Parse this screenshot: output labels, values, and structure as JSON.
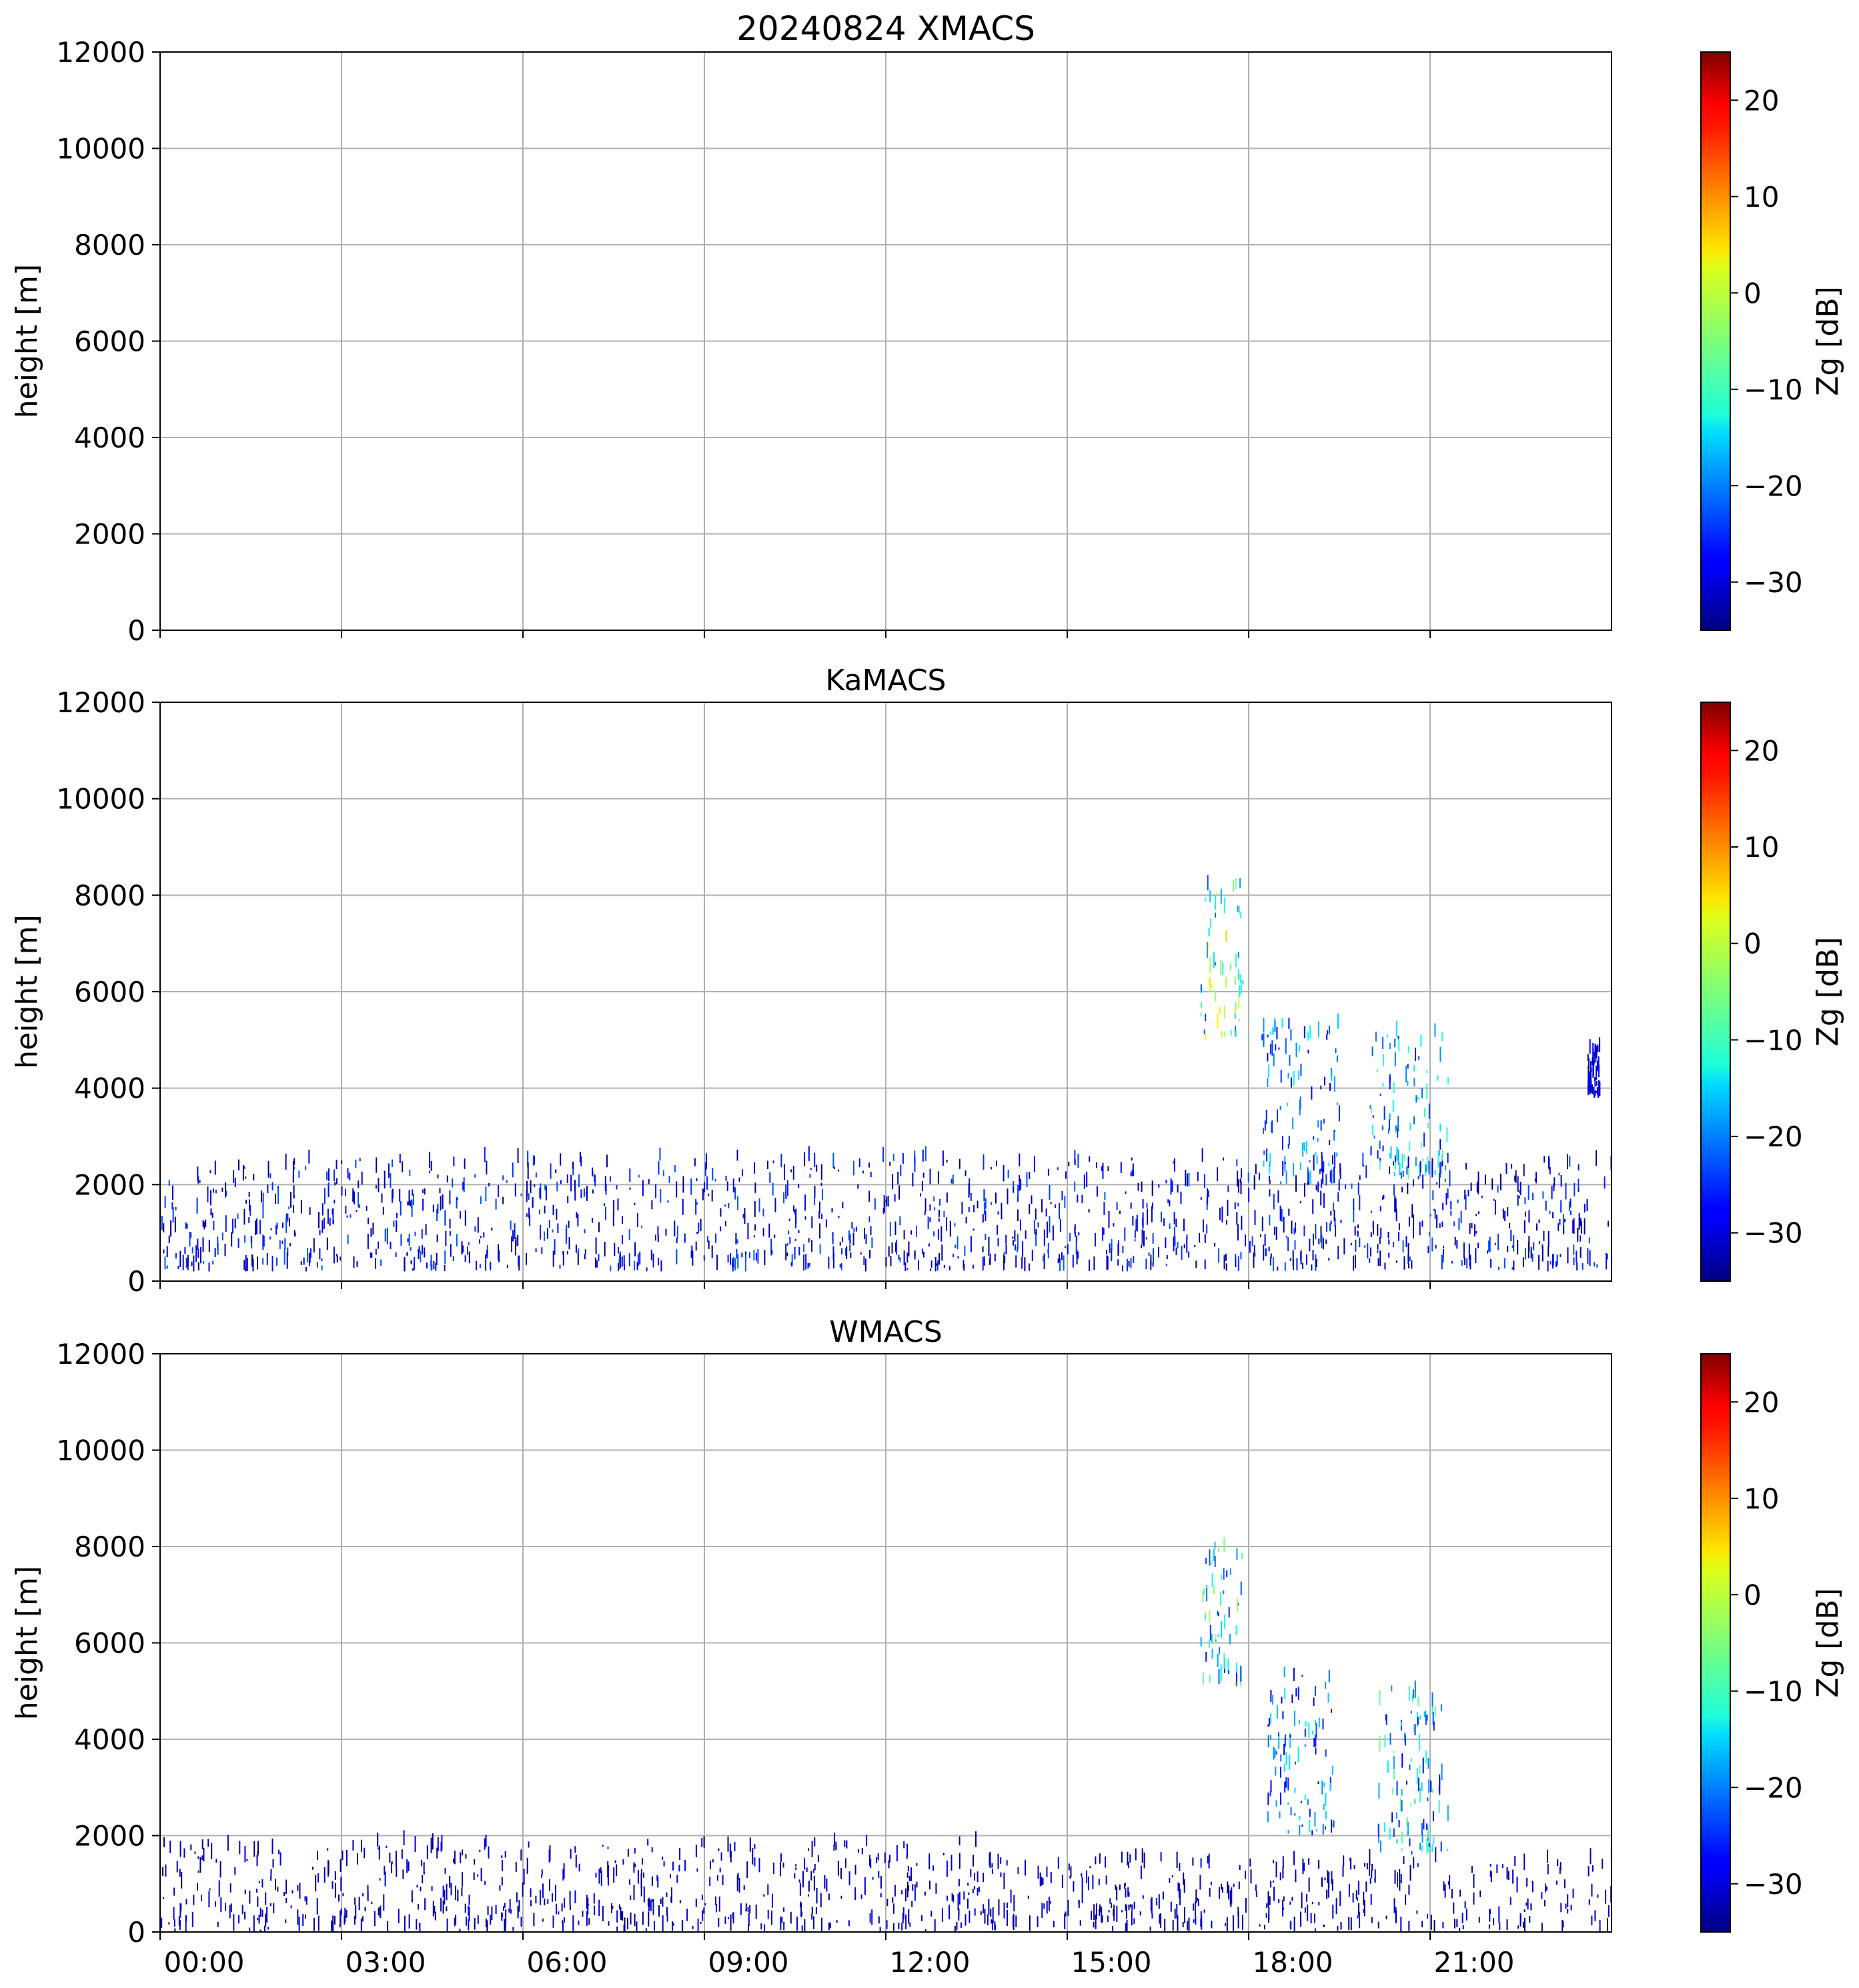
{
  "figure": {
    "title": "20240824 XMACS"
  },
  "chart_data": [
    {
      "type": "heatmap",
      "title": "20240824 XMACS",
      "xlabel": "",
      "ylabel": "height [m]",
      "xlim": [
        "00:00",
        "24:00"
      ],
      "ylim": [
        0,
        12000
      ],
      "x_ticks": [
        "00:00",
        "03:00",
        "06:00",
        "09:00",
        "12:00",
        "15:00",
        "18:00",
        "21:00"
      ],
      "x_ticklabels_shown": false,
      "y_ticks": [
        0,
        2000,
        4000,
        6000,
        8000,
        10000,
        12000
      ],
      "grid": true,
      "colorbar": {
        "label": "Zg [dB]",
        "range": [
          -35,
          25
        ],
        "ticks": [
          -30,
          -20,
          -10,
          0,
          10,
          20
        ],
        "colormap": "jet"
      },
      "echoes": []
    },
    {
      "type": "heatmap",
      "title": "KaMACS",
      "xlabel": "",
      "ylabel": "height [m]",
      "xlim": [
        "00:00",
        "24:00"
      ],
      "ylim": [
        0,
        12000
      ],
      "x_ticks": [
        "00:00",
        "03:00",
        "06:00",
        "09:00",
        "12:00",
        "15:00",
        "18:00",
        "21:00"
      ],
      "x_ticklabels_shown": false,
      "y_ticks": [
        0,
        2000,
        4000,
        6000,
        8000,
        10000,
        12000
      ],
      "grid": true,
      "colorbar": {
        "label": "Zg [dB]",
        "range": [
          -35,
          25
        ],
        "ticks": [
          -30,
          -20,
          -10,
          0,
          10,
          20
        ],
        "colormap": "jet"
      },
      "echoes": [
        {
          "time_start_h": 0.0,
          "time_end_h": 24.0,
          "height_bottom_m": 200,
          "height_top_m": 2500,
          "zg_min_db": -35,
          "zg_max_db": -22
        },
        {
          "time_start_h": 17.2,
          "time_end_h": 17.9,
          "height_bottom_m": 5000,
          "height_top_m": 8200,
          "zg_min_db": -25,
          "zg_max_db": 5
        },
        {
          "time_start_h": 18.2,
          "time_end_h": 19.5,
          "height_bottom_m": 2000,
          "height_top_m": 5300,
          "zg_min_db": -30,
          "zg_max_db": -12
        },
        {
          "time_start_h": 20.0,
          "time_end_h": 21.3,
          "height_bottom_m": 2100,
          "height_top_m": 5100,
          "zg_min_db": -28,
          "zg_max_db": -5
        },
        {
          "time_start_h": 23.6,
          "time_end_h": 23.8,
          "height_bottom_m": 3800,
          "height_top_m": 4800,
          "zg_min_db": -33,
          "zg_max_db": -25
        }
      ]
    },
    {
      "type": "heatmap",
      "title": "WMACS",
      "xlabel": "",
      "ylabel": "height [m]",
      "xlim": [
        "00:00",
        "24:00"
      ],
      "ylim": [
        0,
        12000
      ],
      "x_ticks": [
        "00:00",
        "03:00",
        "06:00",
        "09:00",
        "12:00",
        "15:00",
        "18:00",
        "21:00"
      ],
      "x_ticklabels_shown": true,
      "y_ticks": [
        0,
        2000,
        4000,
        6000,
        8000,
        10000,
        12000
      ],
      "grid": true,
      "colorbar": {
        "label": "Zg [dB]",
        "range": [
          -35,
          25
        ],
        "ticks": [
          -30,
          -20,
          -10,
          0,
          10,
          20
        ],
        "colormap": "jet"
      },
      "echoes": [
        {
          "time_start_h": 0.0,
          "time_end_h": 13.5,
          "height_bottom_m": 0,
          "height_top_m": 1800,
          "zg_min_db": -35,
          "zg_max_db": -28
        },
        {
          "time_start_h": 13.5,
          "time_end_h": 24.0,
          "height_bottom_m": 0,
          "height_top_m": 1500,
          "zg_min_db": -35,
          "zg_max_db": -28
        },
        {
          "time_start_h": 17.2,
          "time_end_h": 17.9,
          "height_bottom_m": 5100,
          "height_top_m": 8000,
          "zg_min_db": -28,
          "zg_max_db": 0
        },
        {
          "time_start_h": 18.3,
          "time_end_h": 19.4,
          "height_bottom_m": 2000,
          "height_top_m": 5500,
          "zg_min_db": -30,
          "zg_max_db": -12
        },
        {
          "time_start_h": 20.1,
          "time_end_h": 21.3,
          "height_bottom_m": 1600,
          "height_top_m": 5000,
          "zg_min_db": -28,
          "zg_max_db": -5
        }
      ]
    }
  ]
}
